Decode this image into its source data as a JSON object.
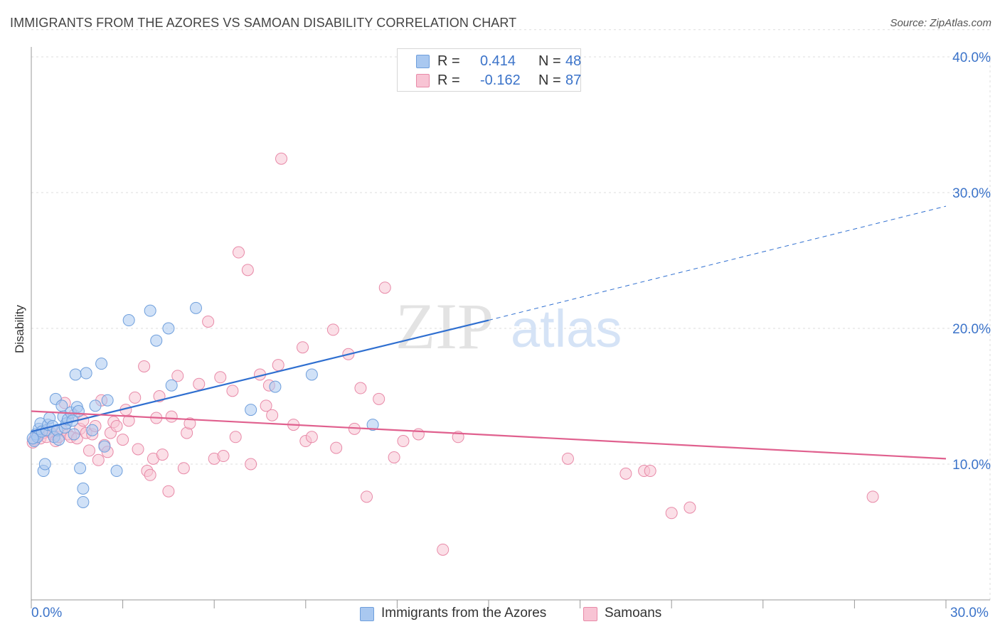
{
  "title": "IMMIGRANTS FROM THE AZORES VS SAMOAN DISABILITY CORRELATION CHART",
  "source": "Source: ZipAtlas.com",
  "watermark": {
    "zip": "ZIP",
    "atlas": "atlas"
  },
  "stats": [
    {
      "r_label": "R =",
      "r_value": "0.414",
      "n_label": "N =",
      "n_value": "48",
      "color": "#a9c8f0",
      "border": "#6f9fdc"
    },
    {
      "r_label": "R =",
      "r_value": "-0.162",
      "n_label": "N =",
      "n_value": "87",
      "color": "#f8c4d4",
      "border": "#e88aa8"
    }
  ],
  "legend": [
    {
      "label": "Immigrants from the Azores",
      "color": "#a9c8f0",
      "border": "#6f9fdc"
    },
    {
      "label": "Samoans",
      "color": "#f8c4d4",
      "border": "#e88aa8"
    }
  ],
  "colors": {
    "blue_line": "#2f6fd0",
    "pink_line": "#e0608e",
    "grid": "#dddddd",
    "axis_text": "#3b73c9"
  },
  "chart_data": {
    "type": "scatter",
    "title": "IMMIGRANTS FROM THE AZORES VS SAMOAN DISABILITY CORRELATION CHART",
    "xlabel": "",
    "ylabel": "Disability",
    "xlim": [
      0,
      30
    ],
    "ylim": [
      0,
      42
    ],
    "x_tick_labels": [
      "0.0%",
      "30.0%"
    ],
    "y_ticks": [
      10,
      20,
      30,
      40
    ],
    "y_tick_labels": [
      "10.0%",
      "20.0%",
      "30.0%",
      "40.0%"
    ],
    "grid": true,
    "series": [
      {
        "name": "Immigrants from the Azores",
        "color": "#a9c8f0",
        "trend": {
          "x0": 0.0,
          "y0": 12.4,
          "x1": 15.0,
          "y1": 20.6,
          "dashed_to_x": 30.0,
          "dashed_to_y": 29.0
        },
        "points": [
          [
            0.1,
            11.7
          ],
          [
            0.15,
            12.2
          ],
          [
            0.2,
            12.0
          ],
          [
            0.25,
            12.6
          ],
          [
            0.3,
            13.0
          ],
          [
            0.35,
            12.4
          ],
          [
            0.4,
            9.5
          ],
          [
            0.45,
            10.0
          ],
          [
            0.5,
            12.5
          ],
          [
            0.55,
            12.9
          ],
          [
            0.6,
            13.4
          ],
          [
            0.7,
            12.8
          ],
          [
            0.75,
            12.0
          ],
          [
            0.8,
            14.8
          ],
          [
            0.85,
            12.5
          ],
          [
            0.9,
            11.8
          ],
          [
            1.0,
            14.3
          ],
          [
            1.05,
            13.5
          ],
          [
            1.1,
            12.7
          ],
          [
            1.15,
            13.0
          ],
          [
            1.2,
            13.3
          ],
          [
            1.3,
            13.8
          ],
          [
            1.35,
            13.2
          ],
          [
            1.4,
            12.2
          ],
          [
            1.45,
            16.6
          ],
          [
            1.5,
            14.2
          ],
          [
            1.55,
            13.9
          ],
          [
            1.6,
            9.7
          ],
          [
            1.7,
            8.2
          ],
          [
            1.7,
            7.2
          ],
          [
            1.8,
            16.7
          ],
          [
            2.0,
            12.5
          ],
          [
            2.1,
            14.3
          ],
          [
            2.3,
            17.4
          ],
          [
            2.4,
            11.3
          ],
          [
            2.5,
            14.7
          ],
          [
            2.8,
            9.5
          ],
          [
            3.2,
            20.6
          ],
          [
            3.9,
            21.3
          ],
          [
            4.1,
            19.1
          ],
          [
            4.5,
            20.0
          ],
          [
            4.6,
            15.8
          ],
          [
            5.4,
            21.5
          ],
          [
            7.2,
            14.0
          ],
          [
            8.0,
            15.7
          ],
          [
            9.2,
            16.6
          ],
          [
            11.2,
            12.9
          ],
          [
            0.05,
            11.9
          ]
        ]
      },
      {
        "name": "Samoans",
        "color": "#f8c4d4",
        "trend": {
          "x0": 0.0,
          "y0": 13.9,
          "x1": 30.0,
          "y1": 10.4
        },
        "points": [
          [
            0.1,
            11.8
          ],
          [
            0.2,
            12.1
          ],
          [
            0.3,
            11.9
          ],
          [
            0.4,
            12.3
          ],
          [
            0.5,
            12.0
          ],
          [
            0.6,
            12.4
          ],
          [
            0.7,
            12.2
          ],
          [
            0.8,
            11.7
          ],
          [
            0.9,
            12.0
          ],
          [
            1.0,
            12.5
          ],
          [
            1.1,
            14.5
          ],
          [
            1.2,
            12.2
          ],
          [
            1.3,
            12.0
          ],
          [
            1.4,
            13.6
          ],
          [
            1.5,
            11.9
          ],
          [
            1.6,
            12.6
          ],
          [
            1.7,
            13.2
          ],
          [
            1.8,
            12.3
          ],
          [
            1.9,
            11.0
          ],
          [
            2.0,
            12.2
          ],
          [
            2.1,
            12.8
          ],
          [
            2.2,
            10.3
          ],
          [
            2.3,
            14.7
          ],
          [
            2.4,
            11.4
          ],
          [
            2.5,
            10.9
          ],
          [
            2.6,
            12.3
          ],
          [
            2.7,
            13.1
          ],
          [
            2.8,
            12.8
          ],
          [
            3.0,
            11.8
          ],
          [
            3.1,
            14.0
          ],
          [
            3.2,
            13.2
          ],
          [
            3.4,
            14.9
          ],
          [
            3.5,
            11.1
          ],
          [
            3.7,
            17.2
          ],
          [
            3.8,
            9.5
          ],
          [
            3.9,
            9.2
          ],
          [
            4.0,
            10.4
          ],
          [
            4.1,
            13.4
          ],
          [
            4.2,
            15.0
          ],
          [
            4.3,
            10.7
          ],
          [
            4.5,
            8.0
          ],
          [
            4.6,
            13.5
          ],
          [
            4.8,
            16.5
          ],
          [
            5.0,
            9.7
          ],
          [
            5.1,
            12.3
          ],
          [
            5.2,
            13.0
          ],
          [
            5.5,
            15.9
          ],
          [
            5.8,
            20.5
          ],
          [
            6.0,
            10.4
          ],
          [
            6.2,
            16.4
          ],
          [
            6.3,
            10.6
          ],
          [
            6.6,
            15.4
          ],
          [
            6.7,
            12.0
          ],
          [
            6.8,
            25.6
          ],
          [
            7.1,
            24.3
          ],
          [
            7.2,
            10.0
          ],
          [
            7.5,
            16.6
          ],
          [
            7.7,
            14.3
          ],
          [
            7.8,
            15.8
          ],
          [
            7.9,
            13.6
          ],
          [
            8.1,
            17.3
          ],
          [
            8.2,
            32.5
          ],
          [
            8.6,
            12.9
          ],
          [
            8.9,
            18.6
          ],
          [
            9.0,
            11.7
          ],
          [
            9.2,
            12.0
          ],
          [
            9.9,
            19.9
          ],
          [
            10.0,
            11.2
          ],
          [
            10.4,
            18.1
          ],
          [
            10.6,
            12.6
          ],
          [
            10.8,
            15.6
          ],
          [
            11.0,
            7.6
          ],
          [
            11.4,
            14.8
          ],
          [
            11.6,
            23.0
          ],
          [
            11.9,
            10.5
          ],
          [
            12.2,
            11.7
          ],
          [
            12.7,
            12.2
          ],
          [
            13.5,
            3.7
          ],
          [
            14.0,
            12.0
          ],
          [
            17.6,
            10.4
          ],
          [
            19.5,
            9.3
          ],
          [
            20.1,
            9.5
          ],
          [
            20.3,
            9.5
          ],
          [
            21.0,
            6.4
          ],
          [
            21.6,
            6.8
          ],
          [
            27.6,
            7.6
          ],
          [
            0.05,
            11.6
          ]
        ]
      }
    ]
  }
}
